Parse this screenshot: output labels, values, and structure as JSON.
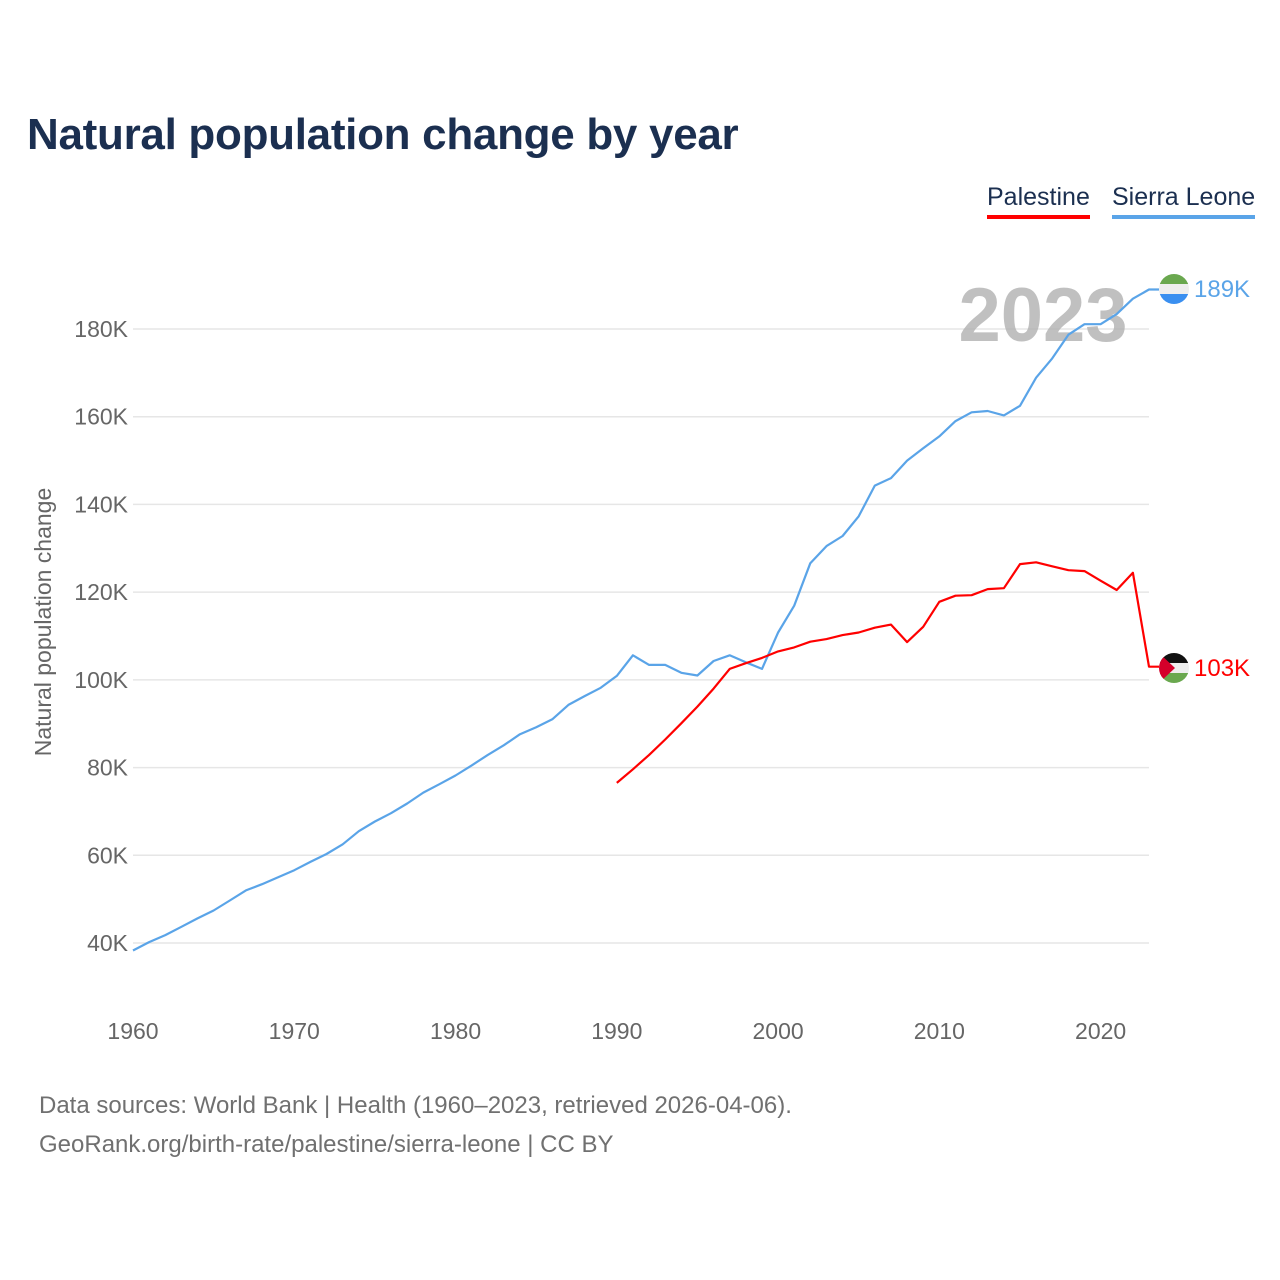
{
  "title": "Natural population change by year",
  "legend": [
    {
      "label": "Palestine",
      "color": "#ff0000"
    },
    {
      "label": "Sierra Leone",
      "color": "#5aa4e8"
    }
  ],
  "year_watermark": "2023",
  "source_line1": "Data sources: World Bank | Health (1960–2023, retrieved 2026-04-06).",
  "source_line2": "GeoRank.org/birth-rate/palestine/sierra-leone | CC BY",
  "chart_data": {
    "type": "line",
    "title": "Natural population change by year",
    "xlabel": "",
    "ylabel": "Natural population change",
    "xlim": [
      1960,
      2023
    ],
    "ylim": [
      30000,
      195000
    ],
    "x_ticks": [
      1960,
      1970,
      1980,
      1990,
      2000,
      2010,
      2020
    ],
    "y_ticks": [
      40000,
      60000,
      80000,
      100000,
      120000,
      140000,
      160000,
      180000
    ],
    "y_tick_labels": [
      "40K",
      "60K",
      "80K",
      "100K",
      "120K",
      "140K",
      "160K",
      "180K"
    ],
    "grid": "horizontal",
    "legend_position": "top-right",
    "series": [
      {
        "name": "Sierra Leone",
        "color": "#5aa4e8",
        "end_label": "189K",
        "x_start": 1960,
        "values": [
          38300,
          40200,
          41800,
          43700,
          45600,
          47400,
          49700,
          52000,
          53400,
          55000,
          56600,
          58500,
          60300,
          62500,
          65500,
          67700,
          69600,
          71800,
          74300,
          76200,
          78200,
          80500,
          82900,
          85100,
          87600,
          89200,
          91000,
          94300,
          96300,
          98200,
          100900,
          105600,
          103400,
          103400,
          101600,
          101000,
          104300,
          105600,
          104000,
          102500,
          110800,
          116900,
          126600,
          130500,
          132800,
          137300,
          144300,
          146000,
          150000,
          152800,
          155500,
          159000,
          161000,
          161300,
          160300,
          162500,
          168900,
          173300,
          178700,
          181100,
          181100,
          183400,
          186900,
          189000
        ]
      },
      {
        "name": "Palestine",
        "color": "#ff0000",
        "end_label": "103K",
        "x_start": 1990,
        "values": [
          76500,
          79600,
          82900,
          86400,
          90100,
          93900,
          98000,
          102500,
          103800,
          105000,
          106500,
          107400,
          108700,
          109300,
          110200,
          110800,
          111900,
          112600,
          108600,
          112100,
          117800,
          119200,
          119300,
          120700,
          120900,
          126400,
          126800,
          125900,
          125000,
          124800,
          122600,
          120500,
          124400,
          103000
        ]
      }
    ]
  }
}
